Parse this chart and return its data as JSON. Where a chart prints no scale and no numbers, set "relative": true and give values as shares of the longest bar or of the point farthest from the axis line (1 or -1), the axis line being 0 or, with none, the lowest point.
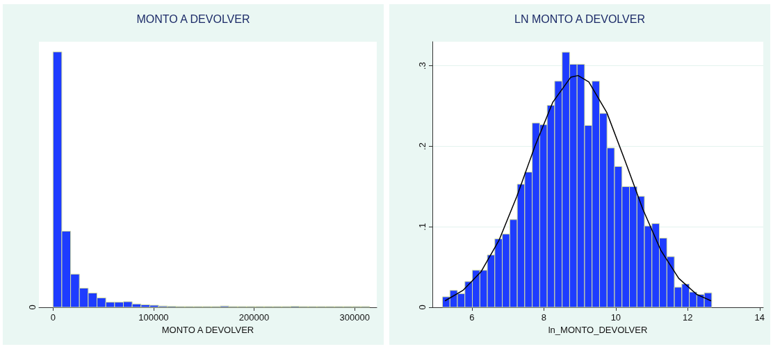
{
  "chart_data": [
    {
      "type": "bar",
      "title": "MONTO A DEVOLVER",
      "xlabel": "MONTO A DEVOLVER",
      "relative": true,
      "color": "#1e3cff",
      "x": [
        4375,
        13125,
        21875,
        30625,
        39375,
        48125,
        56875,
        65625,
        74375,
        83125,
        91875,
        100625,
        109375,
        118125,
        126875,
        135625,
        144375,
        153125,
        161875,
        170625,
        179375,
        188125,
        196875,
        205625,
        214375,
        223125,
        231875,
        240625,
        249375,
        258125,
        266875,
        275625,
        284375,
        293125,
        301875,
        310625
      ],
      "values": [
        1,
        0.298,
        0.13,
        0.075,
        0.056,
        0.037,
        0.02,
        0.02,
        0.022,
        0.013,
        0.01,
        0.008,
        0.005,
        0.004,
        0.003,
        0.003,
        0.003,
        0.003,
        0.003,
        0.005,
        0.003,
        0.003,
        0.003,
        0.003,
        0.003,
        0.003,
        0.003,
        0.004,
        0.003,
        0.003,
        0.003,
        0.003,
        0.003,
        0.003,
        0.003,
        0.003
      ],
      "xlim": [
        -14000,
        322000
      ],
      "xticks": [
        0,
        100000,
        200000,
        300000
      ],
      "annotations": [
        "0"
      ]
    },
    {
      "type": "histogram",
      "title": "LN MONTO A DEVOLVER",
      "xlabel": "ln_MONTO_DEVOLVER",
      "grid": "y",
      "xlim": [
        4.9,
        14.1
      ],
      "xticks": [
        6,
        8,
        10,
        12,
        14
      ],
      "ylim": [
        0,
        0.33
      ],
      "yticks": [
        0,
        {
          "value": 0.1,
          "label": ".1"
        },
        {
          "value": 0.2,
          "label": ".2"
        },
        {
          "value": 0.3,
          "label": ".3"
        }
      ],
      "series": [
        {
          "color": "#1e3cff",
          "bins": [
            5.18,
            5.388,
            5.596,
            5.804,
            6.012,
            6.22,
            6.428,
            6.636,
            6.844,
            7.052,
            7.26,
            7.468,
            7.676,
            7.884,
            8.092,
            8.3,
            8.508,
            8.716,
            8.924,
            9.132,
            9.34,
            9.548,
            9.756,
            9.964,
            10.172,
            10.38,
            10.588,
            10.796,
            11.004,
            11.212,
            11.42,
            11.628,
            11.836,
            12.044,
            12.252,
            12.46,
            12.668
          ],
          "values": [
            0.013,
            0.021,
            0.017,
            0.032,
            0.046,
            0.046,
            0.065,
            0.085,
            0.091,
            0.109,
            0.153,
            0.168,
            0.229,
            0.227,
            0.251,
            0.281,
            0.317,
            0.302,
            0.302,
            0.226,
            0.281,
            0.241,
            0.198,
            0.175,
            0.15,
            0.15,
            0.138,
            0.101,
            0.104,
            0.086,
            0.063,
            0.025,
            0.029,
            0.019,
            0.016,
            0.018
          ]
        },
        {
          "type": "line",
          "color": "#000000",
          "marker": "none",
          "x": [
            5.25,
            5.75,
            6.25,
            6.75,
            7.25,
            7.75,
            8.25,
            8.75,
            8.95,
            9.25,
            9.75,
            10.25,
            10.75,
            11.25,
            11.75,
            12.25,
            12.65
          ],
          "values": [
            0.008,
            0.021,
            0.044,
            0.083,
            0.138,
            0.2,
            0.255,
            0.286,
            0.288,
            0.28,
            0.242,
            0.183,
            0.122,
            0.071,
            0.036,
            0.016,
            0.008
          ]
        }
      ]
    }
  ]
}
